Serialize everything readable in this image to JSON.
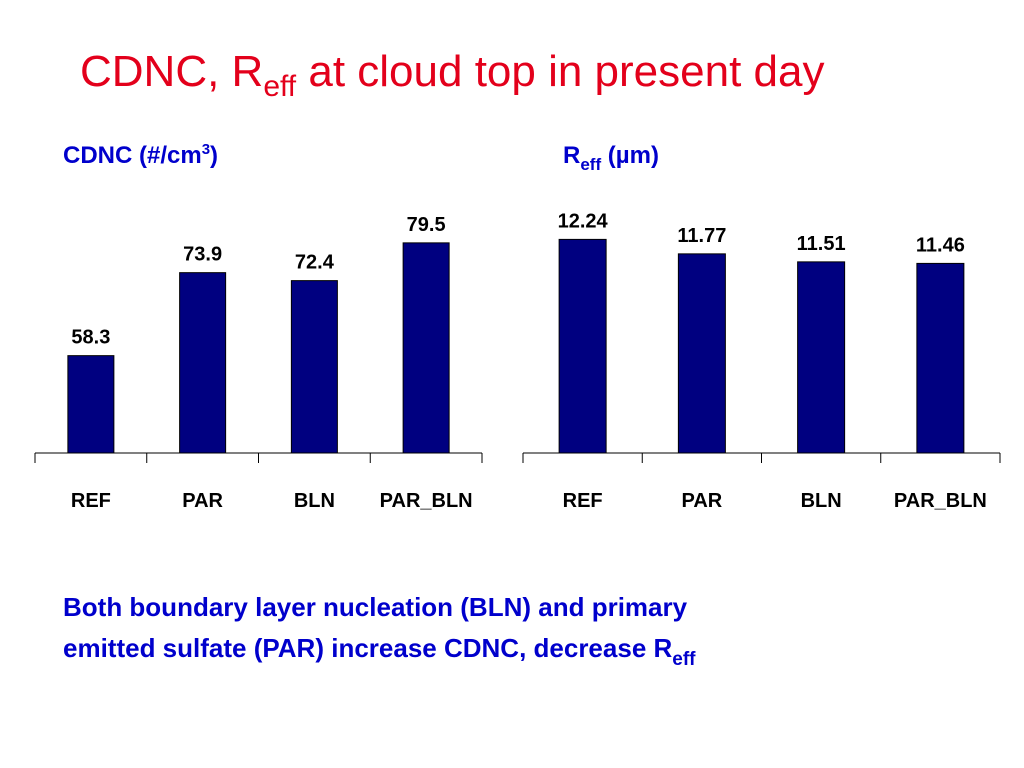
{
  "title": [
    "CDNC, R",
    "eff",
    " at cloud top in present day"
  ],
  "chart_data": [
    {
      "type": "bar",
      "title": [
        "CDNC (#/cm",
        "3",
        ")"
      ],
      "categories": [
        "REF",
        "PAR",
        "BLN",
        "PAR_BLN"
      ],
      "values": [
        58.3,
        73.9,
        72.4,
        79.5
      ],
      "color": "#000080",
      "ylim": [
        40,
        90
      ]
    },
    {
      "type": "bar",
      "title": [
        "R",
        "eff",
        " (µm)"
      ],
      "categories": [
        "REF",
        "PAR",
        "BLN",
        "PAR_BLN"
      ],
      "values": [
        12.24,
        11.77,
        11.51,
        11.46
      ],
      "color": "#000080",
      "ylim": [
        5.3,
        13
      ]
    }
  ],
  "caption": [
    "Both boundary layer nucleation (BLN) and primary",
    "emitted sulfate (PAR) increase CDNC, decrease R",
    "eff"
  ]
}
